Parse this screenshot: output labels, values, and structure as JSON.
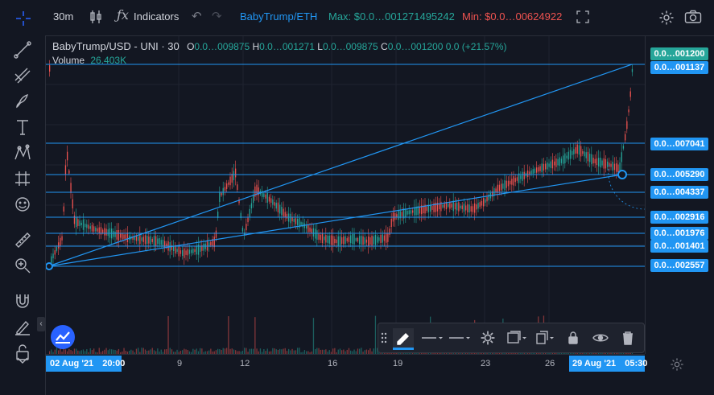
{
  "topbar": {
    "interval": "30m",
    "indicators_label": "Indicators",
    "symbol_pair": "BabyTrump/ETH",
    "max_label": "Max: $0.0…001271495242",
    "min_label": "Min: $0.0…00624922"
  },
  "legend": {
    "title": "BabyTrump/USD - UNI · 30",
    "o_label": "O",
    "o_value": "0.0…009875",
    "h_label": "H",
    "h_value": "0.0…001271",
    "l_label": "L",
    "l_value": "0.0…009875",
    "c_label": "C",
    "c_value": "0.0…001200",
    "change": "0.0 (+21.57%)",
    "volume_label": "Volume",
    "volume_value": "26.403K"
  },
  "price_labels": [
    "0.0…001200",
    "0.0…001137",
    "0.0…007041",
    "0.0…005290",
    "0.0…004337",
    "0.0…002916",
    "0.0…001976",
    "0.0…001401",
    "0.0…002557"
  ],
  "time_axis": {
    "start_label": "02 Aug '21",
    "start_time": "20:00",
    "ticks": [
      "9",
      "12",
      "16",
      "19",
      "23",
      "26"
    ],
    "end_label": "29 Aug '21",
    "end_time": "05:30"
  },
  "colors": {
    "background": "#131722",
    "accent": "#2962ff",
    "line_blue": "#2196f3",
    "up": "#26a69a",
    "down": "#ef5350",
    "highlight_cyan": "#00bcd4"
  }
}
